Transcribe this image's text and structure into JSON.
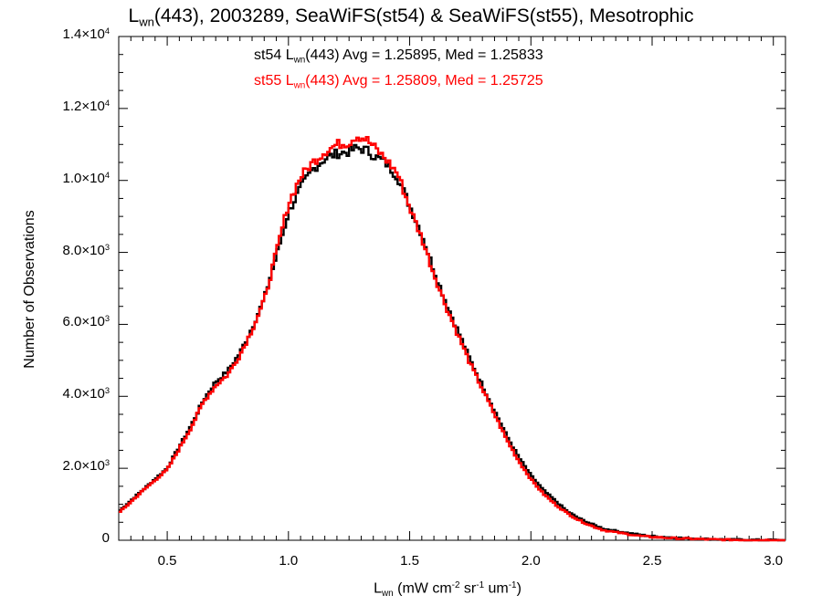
{
  "title": {
    "pre": "L",
    "sub": "wn",
    "post": "(443), 2003289, SeaWiFS(st54) & SeaWiFS(st55), Mesotrophic"
  },
  "legend": [
    {
      "pre": "st54 L",
      "sub": "wn",
      "post": "(443) Avg = 1.25895, Med = 1.25833",
      "color": "#000000"
    },
    {
      "pre": "st55 L",
      "sub": "wn",
      "post": "(443) Avg = 1.25809, Med = 1.25725",
      "color": "#ff0000"
    }
  ],
  "xaxis": {
    "pre": "L",
    "sub": "wn",
    "mid1": " (mW cm",
    "sup1": "-2",
    "mid2": " sr",
    "sup2": "-1",
    "mid3": " um",
    "sup3": "-1",
    "post": ")",
    "ticks": [
      "0.5",
      "1.0",
      "1.5",
      "2.0",
      "2.5",
      "3.0"
    ]
  },
  "yaxis": {
    "label": "Number of Observations",
    "ticks": [
      {
        "mant": "0",
        "exp": ""
      },
      {
        "mant": "2.0×10",
        "exp": "3"
      },
      {
        "mant": "4.0×10",
        "exp": "3"
      },
      {
        "mant": "6.0×10",
        "exp": "3"
      },
      {
        "mant": "8.0×10",
        "exp": "3"
      },
      {
        "mant": "1.0×10",
        "exp": "4"
      },
      {
        "mant": "1.2×10",
        "exp": "4"
      },
      {
        "mant": "1.4×10",
        "exp": "4"
      }
    ]
  },
  "chart_data": {
    "type": "line",
    "xlim": [
      0.3,
      3.05
    ],
    "ylim": [
      0,
      14000
    ],
    "step": "histogram",
    "x_points": [
      0.3,
      0.4,
      0.5,
      0.55,
      0.6,
      0.65,
      0.7,
      0.75,
      0.8,
      0.85,
      0.9,
      0.95,
      1.0,
      1.05,
      1.1,
      1.15,
      1.2,
      1.25,
      1.28,
      1.32,
      1.35,
      1.4,
      1.45,
      1.5,
      1.55,
      1.6,
      1.65,
      1.7,
      1.75,
      1.8,
      1.85,
      1.9,
      1.95,
      2.0,
      2.05,
      2.1,
      2.15,
      2.2,
      2.25,
      2.3,
      2.35,
      2.4,
      2.45,
      2.5,
      2.6,
      2.7,
      2.8,
      2.9,
      3.0,
      3.05
    ],
    "series": [
      {
        "name": "st54",
        "color": "#000000",
        "values": [
          800,
          1400,
          2000,
          2600,
          3200,
          3900,
          4400,
          4700,
          5200,
          5900,
          6700,
          7900,
          9100,
          9800,
          10300,
          10600,
          10750,
          10800,
          10900,
          10850,
          10700,
          10500,
          10100,
          9300,
          8500,
          7500,
          6600,
          5800,
          5000,
          4300,
          3600,
          2900,
          2300,
          1800,
          1400,
          1100,
          800,
          600,
          450,
          320,
          260,
          200,
          150,
          110,
          70,
          40,
          20,
          10,
          5,
          0
        ]
      },
      {
        "name": "st55",
        "color": "#ff0000",
        "values": [
          750,
          1380,
          1960,
          2550,
          3150,
          3850,
          4300,
          4600,
          5150,
          5850,
          6650,
          8000,
          9350,
          10100,
          10500,
          10800,
          11000,
          11050,
          11250,
          11150,
          10950,
          10600,
          10200,
          9250,
          8400,
          7400,
          6500,
          5700,
          4900,
          4200,
          3500,
          2800,
          2200,
          1700,
          1300,
          1000,
          750,
          550,
          400,
          280,
          220,
          170,
          120,
          90,
          55,
          30,
          15,
          8,
          4,
          0
        ]
      }
    ]
  }
}
